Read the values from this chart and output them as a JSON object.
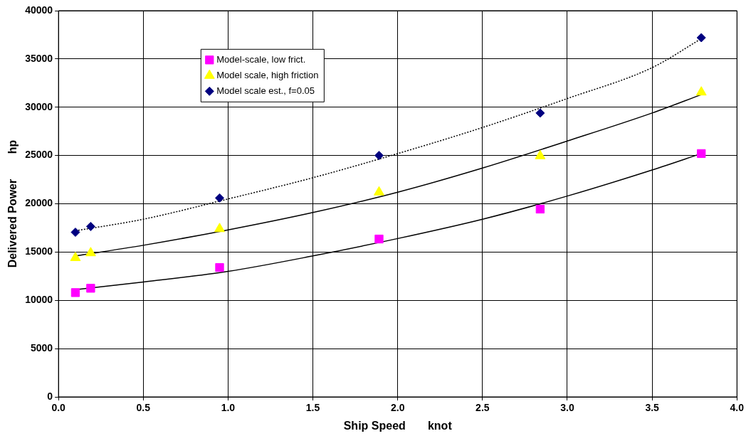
{
  "chart_data": {
    "type": "scatter",
    "xlabel": "Ship Speed       knot",
    "ylabel": "Delivered Power        hp",
    "xlim": [
      0,
      4
    ],
    "xticks": [
      {
        "value": 0,
        "label": "0.0"
      },
      {
        "value": 0.5,
        "label": "0.5"
      },
      {
        "value": 1,
        "label": "1.0"
      },
      {
        "value": 1.5,
        "label": "1.5"
      },
      {
        "value": 2,
        "label": "2.0"
      },
      {
        "value": 2.5,
        "label": "2.5"
      },
      {
        "value": 3,
        "label": "3.0"
      },
      {
        "value": 3.5,
        "label": "3.5"
      },
      {
        "value": 4,
        "label": "4.0"
      }
    ],
    "ylim": [
      0,
      40000
    ],
    "yticks": [
      0,
      5000,
      10000,
      15000,
      20000,
      25000,
      30000,
      35000,
      40000
    ],
    "grid": true,
    "legend": "top left",
    "series": [
      {
        "name": "Model-scale, low frict.",
        "type": "scatter",
        "marker": "square",
        "color": "#ff00ff",
        "x": [
          0.1,
          0.19,
          0.95,
          1.89,
          2.84,
          3.79
        ],
        "values": [
          10800,
          11250,
          13400,
          16350,
          19450,
          25200
        ]
      },
      {
        "name": "Model scale, high friction",
        "type": "scatter",
        "marker": "triangle",
        "color": "#ffff00",
        "x": [
          0.1,
          0.19,
          0.95,
          1.89,
          2.84,
          3.79
        ],
        "values": [
          14400,
          14900,
          17400,
          21200,
          24950,
          31550
        ]
      },
      {
        "name": "Model scale est., f=0.05",
        "type": "scatter",
        "marker": "diamond",
        "color": "#000080",
        "x": [
          0.1,
          0.19,
          0.95,
          1.89,
          2.84,
          3.79
        ],
        "values": [
          17050,
          17650,
          20600,
          25000,
          29400,
          37200
        ]
      },
      {
        "type": "line",
        "marker": "none",
        "line_style": "solid",
        "color": "#000000",
        "x": [
          0.1,
          0.5,
          1,
          1.5,
          2,
          2.5,
          3,
          3.5,
          3.79
        ],
        "values": [
          11100,
          11900,
          13000,
          14600,
          16400,
          18400,
          20800,
          23500,
          25200
        ]
      },
      {
        "type": "line",
        "marker": "none",
        "line_style": "solid",
        "color": "#000000",
        "x": [
          0.1,
          0.5,
          1,
          1.5,
          2,
          2.5,
          3,
          3.5,
          3.79
        ],
        "values": [
          14600,
          15700,
          17300,
          19100,
          21200,
          23700,
          26500,
          29400,
          31300
        ]
      },
      {
        "type": "line",
        "marker": "none",
        "line_style": "dotted",
        "color": "#000000",
        "x": [
          0.1,
          0.5,
          1,
          1.5,
          2,
          2.5,
          3,
          3.5,
          3.79
        ],
        "values": [
          17200,
          18400,
          20500,
          22700,
          25200,
          27900,
          30900,
          34100,
          37100
        ]
      }
    ]
  }
}
